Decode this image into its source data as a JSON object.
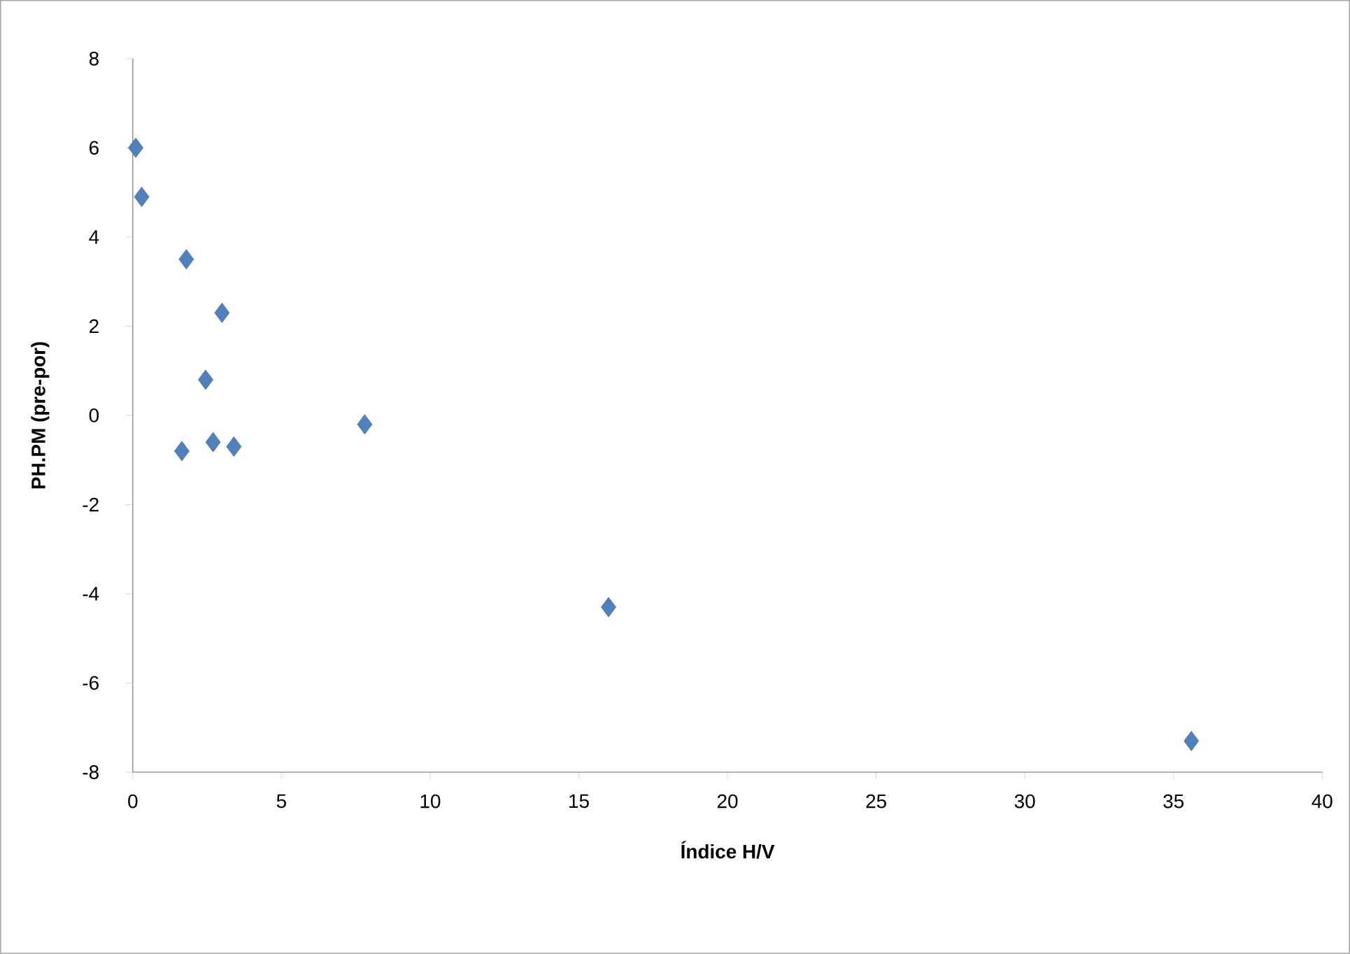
{
  "chart_data": {
    "type": "scatter",
    "xlabel": "Índice H/V",
    "ylabel": "PH.PM (pre-por)",
    "x": [
      0.1,
      0.3,
      1.8,
      3.0,
      2.45,
      1.65,
      2.7,
      3.4,
      7.8,
      16.0,
      35.6
    ],
    "values": [
      6.0,
      4.9,
      3.5,
      2.3,
      0.8,
      -0.8,
      -0.6,
      -0.7,
      -0.2,
      -4.3,
      -7.3
    ],
    "color": "#4f81bd",
    "marker": "diamond",
    "xlim": [
      0,
      40
    ],
    "xticks": [
      0,
      5,
      10,
      15,
      20,
      25,
      30,
      35,
      40
    ],
    "ylim": [
      -8,
      8
    ],
    "yticks": [
      -8,
      -6,
      -4,
      -2,
      0,
      2,
      4,
      6,
      8
    ]
  }
}
